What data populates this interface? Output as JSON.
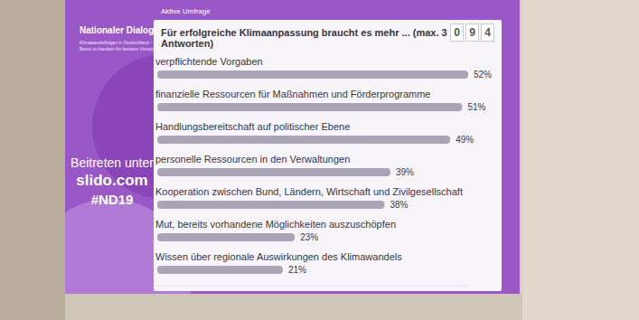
{
  "chart_data": {
    "type": "bar",
    "orientation": "horizontal",
    "title": "Für erfolgreiche Klimaanpassung braucht es mehr ... (max. 3 Antworten)",
    "subtitle": "Aktive Umfrage",
    "annotations": [
      "Nationaler Dialog",
      "Klimawandelfolgen in Deutschland –",
      "Bereit zu handeln für bessere Vorsorge",
      "Beitreten unter",
      "slido.com",
      "#ND19",
      "094"
    ],
    "categories": [
      "verpflichtende Vorgaben",
      "finanzielle Ressourcen für Maßnahmen und Förderprogramme",
      "Handlungsbereitschaft auf politischer Ebene",
      "personelle Ressourcen in den Verwaltungen",
      "Kooperation zwischen Bund, Ländern, Wirtschaft und Zivilgesellschaft",
      "Mut, bereits vorhandene Möglichkeiten auszuschöpfen",
      "Wissen über regionale Auswirkungen des Klimawandels"
    ],
    "values": [
      52,
      51,
      49,
      39,
      38,
      23,
      21
    ],
    "value_labels": [
      "52%",
      "51%",
      "49%",
      "39%",
      "38%",
      "23%",
      "21%"
    ],
    "color": "#a9a5b6",
    "xlim": [
      0,
      52
    ],
    "tick_labels": false,
    "data_labels": true,
    "grid": false
  }
}
